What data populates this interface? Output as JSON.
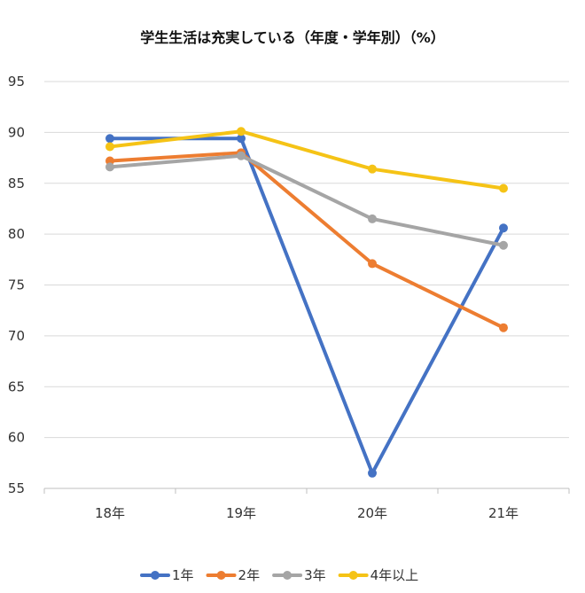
{
  "chart_data": {
    "type": "line",
    "title": "学生生活は充実している（年度・学年別）（%）",
    "categories": [
      "18年",
      "19年",
      "20年",
      "21年"
    ],
    "ylim": [
      55,
      95
    ],
    "yticks": [
      55,
      60,
      65,
      70,
      75,
      80,
      85,
      90,
      95
    ],
    "grid": true,
    "legend_position": "bottom",
    "series": [
      {
        "name": "1年",
        "color": "#4472C4",
        "values": [
          89.4,
          89.4,
          56.5,
          80.6
        ]
      },
      {
        "name": "2年",
        "color": "#ED7D31",
        "values": [
          87.2,
          88.0,
          77.1,
          70.8
        ]
      },
      {
        "name": "3年",
        "color": "#A5A5A5",
        "values": [
          86.6,
          87.7,
          81.5,
          78.9
        ]
      },
      {
        "name": "4年以上",
        "color": "#F5C316",
        "values": [
          88.6,
          90.1,
          86.4,
          84.5
        ]
      }
    ]
  }
}
